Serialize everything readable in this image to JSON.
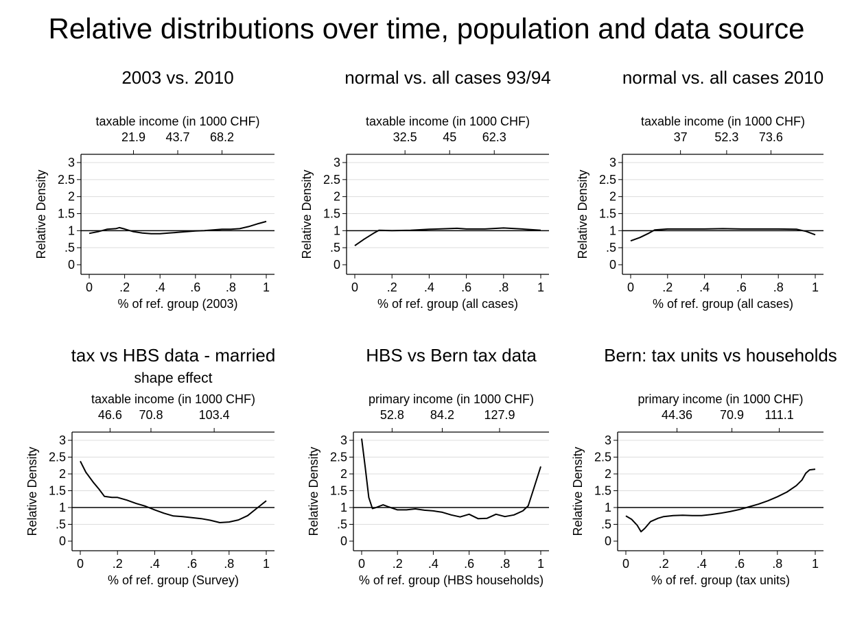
{
  "title": "Relative distributions over time, population and data source",
  "chart_data": [
    {
      "type": "line",
      "title": "2003 vs. 2010",
      "subtitle": "",
      "top_axis_label": "taxable income (in 1000 CHF)",
      "top_ticks": [
        {
          "x": 0.25,
          "label": "21.9"
        },
        {
          "x": 0.5,
          "label": "43.7"
        },
        {
          "x": 0.75,
          "label": "68.2"
        }
      ],
      "xlabel": "% of ref. group (2003)",
      "ylabel": "Relative Density",
      "xlim": [
        0,
        1
      ],
      "ylim": [
        0,
        3
      ],
      "x_ticks": [
        "0",
        ".2",
        ".4",
        ".6",
        ".8",
        "1"
      ],
      "y_ticks": [
        "0",
        ".5",
        "1",
        "1.5",
        "2",
        "2.5",
        "3"
      ],
      "reference_line": 1,
      "series": [
        {
          "x": [
            0,
            0.05,
            0.1,
            0.15,
            0.17,
            0.2,
            0.25,
            0.3,
            0.35,
            0.4,
            0.45,
            0.5,
            0.55,
            0.6,
            0.65,
            0.7,
            0.75,
            0.8,
            0.85,
            0.9,
            0.95,
            1
          ],
          "y": [
            0.92,
            0.97,
            1.04,
            1.06,
            1.09,
            1.05,
            0.97,
            0.93,
            0.91,
            0.91,
            0.93,
            0.95,
            0.97,
            0.99,
            1.0,
            1.02,
            1.04,
            1.04,
            1.06,
            1.12,
            1.2,
            1.27
          ]
        }
      ]
    },
    {
      "type": "line",
      "title": "normal vs. all cases 93/94",
      "subtitle": "",
      "top_axis_label": "taxable income (in 1000 CHF)",
      "top_ticks": [
        {
          "x": 0.27,
          "label": "32.5"
        },
        {
          "x": 0.51,
          "label": "45"
        },
        {
          "x": 0.75,
          "label": "62.3"
        }
      ],
      "xlabel": "% of ref. group (all cases)",
      "ylabel": "Relative Density",
      "xlim": [
        0,
        1
      ],
      "ylim": [
        0,
        3
      ],
      "x_ticks": [
        "0",
        ".2",
        ".4",
        ".6",
        ".8",
        "1"
      ],
      "y_ticks": [
        "0",
        ".5",
        "1",
        "1.5",
        "2",
        "2.5",
        "3"
      ],
      "reference_line": 1,
      "series": [
        {
          "x": [
            0,
            0.05,
            0.1,
            0.13,
            0.2,
            0.3,
            0.4,
            0.5,
            0.55,
            0.6,
            0.7,
            0.8,
            0.9,
            1
          ],
          "y": [
            0.56,
            0.75,
            0.92,
            1.01,
            1.0,
            1.01,
            1.04,
            1.06,
            1.07,
            1.05,
            1.05,
            1.08,
            1.05,
            1.01
          ]
        }
      ]
    },
    {
      "type": "line",
      "title": "normal vs. all cases 2010",
      "subtitle": "",
      "top_axis_label": "taxable income (in 1000 CHF)",
      "top_ticks": [
        {
          "x": 0.27,
          "label": "37"
        },
        {
          "x": 0.52,
          "label": "52.3"
        },
        {
          "x": 0.76,
          "label": "73.6"
        }
      ],
      "xlabel": "% of ref. group (all cases)",
      "ylabel": "Relative Density",
      "xlim": [
        0,
        1
      ],
      "ylim": [
        0,
        3
      ],
      "x_ticks": [
        "0",
        ".2",
        ".4",
        ".6",
        ".8",
        "1"
      ],
      "y_ticks": [
        "0",
        ".5",
        "1",
        "1.5",
        "2",
        "2.5",
        "3"
      ],
      "reference_line": 1,
      "series": [
        {
          "x": [
            0,
            0.05,
            0.1,
            0.13,
            0.2,
            0.3,
            0.4,
            0.5,
            0.6,
            0.7,
            0.8,
            0.9,
            0.95,
            1
          ],
          "y": [
            0.7,
            0.8,
            0.93,
            1.02,
            1.05,
            1.05,
            1.05,
            1.06,
            1.05,
            1.05,
            1.05,
            1.04,
            0.98,
            0.88
          ]
        }
      ]
    },
    {
      "type": "line",
      "title": "tax vs HBS data - married",
      "subtitle": "shape effect",
      "top_axis_label": "taxable income (in 1000 CHF)",
      "top_ticks": [
        {
          "x": 0.16,
          "label": "46.6"
        },
        {
          "x": 0.38,
          "label": "70.8"
        },
        {
          "x": 0.72,
          "label": "103.4"
        }
      ],
      "xlabel": "% of ref. group (Survey)",
      "ylabel": "Relative Density",
      "xlim": [
        0,
        1
      ],
      "ylim": [
        0,
        3
      ],
      "x_ticks": [
        "0",
        ".2",
        ".4",
        ".6",
        ".8",
        "1"
      ],
      "y_ticks": [
        "0",
        ".5",
        "1",
        "1.5",
        "2",
        "2.5",
        "3"
      ],
      "reference_line": 1,
      "series": [
        {
          "x": [
            0,
            0.03,
            0.07,
            0.1,
            0.13,
            0.17,
            0.2,
            0.25,
            0.3,
            0.35,
            0.4,
            0.45,
            0.5,
            0.55,
            0.6,
            0.65,
            0.7,
            0.75,
            0.8,
            0.85,
            0.9,
            0.95,
            1
          ],
          "y": [
            2.38,
            2.05,
            1.75,
            1.55,
            1.33,
            1.3,
            1.3,
            1.22,
            1.12,
            1.04,
            0.93,
            0.83,
            0.75,
            0.73,
            0.7,
            0.67,
            0.62,
            0.55,
            0.57,
            0.63,
            0.76,
            0.98,
            1.2
          ]
        }
      ]
    },
    {
      "type": "line",
      "title": "HBS vs Bern tax data",
      "subtitle": "",
      "top_axis_label": "primary income (in 1000 CHF)",
      "top_ticks": [
        {
          "x": 0.17,
          "label": "52.8"
        },
        {
          "x": 0.45,
          "label": "84.2"
        },
        {
          "x": 0.77,
          "label": "127.9"
        }
      ],
      "xlabel": "% of ref. group (HBS households)",
      "ylabel": "Relative Density",
      "xlim": [
        0,
        1
      ],
      "ylim": [
        0,
        3
      ],
      "x_ticks": [
        "0",
        ".2",
        ".4",
        ".6",
        ".8",
        "1"
      ],
      "y_ticks": [
        "0",
        ".5",
        "1",
        "1.5",
        "2",
        "2.5",
        "3"
      ],
      "reference_line": 1,
      "series": [
        {
          "x": [
            0,
            0.02,
            0.04,
            0.06,
            0.08,
            0.1,
            0.12,
            0.15,
            0.2,
            0.25,
            0.3,
            0.35,
            0.4,
            0.45,
            0.5,
            0.55,
            0.6,
            0.65,
            0.7,
            0.75,
            0.8,
            0.85,
            0.9,
            0.93,
            0.96,
            1
          ],
          "y": [
            3.05,
            2.2,
            1.3,
            0.97,
            1.0,
            1.04,
            1.08,
            1.02,
            0.93,
            0.93,
            0.96,
            0.92,
            0.9,
            0.86,
            0.78,
            0.72,
            0.8,
            0.67,
            0.68,
            0.8,
            0.73,
            0.78,
            0.9,
            1.05,
            1.55,
            2.22
          ]
        }
      ]
    },
    {
      "type": "line",
      "title": "Bern: tax units vs households",
      "subtitle": "",
      "top_axis_label": "primary income (in 1000 CHF)",
      "top_ticks": [
        {
          "x": 0.27,
          "label": "44.36"
        },
        {
          "x": 0.56,
          "label": "70.9"
        },
        {
          "x": 0.81,
          "label": "111.1"
        }
      ],
      "xlabel": "% of ref. group (tax units)",
      "ylabel": "Relative Density",
      "xlim": [
        0,
        1
      ],
      "ylim": [
        0,
        3
      ],
      "x_ticks": [
        "0",
        ".2",
        ".4",
        ".6",
        ".8",
        "1"
      ],
      "y_ticks": [
        "0",
        ".5",
        "1",
        "1.5",
        "2",
        "2.5",
        "3"
      ],
      "reference_line": 1,
      "series": [
        {
          "x": [
            0,
            0.03,
            0.06,
            0.08,
            0.1,
            0.13,
            0.17,
            0.2,
            0.25,
            0.3,
            0.35,
            0.4,
            0.45,
            0.5,
            0.55,
            0.6,
            0.65,
            0.7,
            0.75,
            0.8,
            0.85,
            0.9,
            0.93,
            0.95,
            0.97,
            1
          ],
          "y": [
            0.75,
            0.65,
            0.47,
            0.28,
            0.38,
            0.58,
            0.68,
            0.73,
            0.76,
            0.77,
            0.76,
            0.76,
            0.79,
            0.83,
            0.88,
            0.94,
            1.02,
            1.1,
            1.2,
            1.32,
            1.46,
            1.65,
            1.82,
            2.02,
            2.12,
            2.14
          ]
        }
      ]
    }
  ]
}
